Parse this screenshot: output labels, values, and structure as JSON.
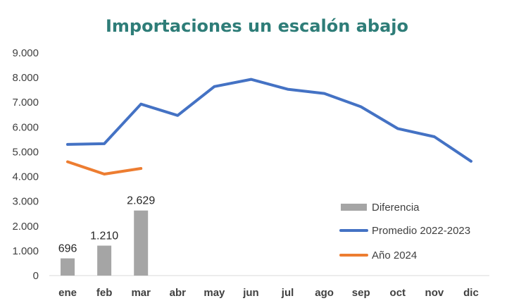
{
  "chart_data": {
    "type": "bar",
    "title": "Importaciones un escalón abajo",
    "categories": [
      "ene",
      "feb",
      "mar",
      "abr",
      "may",
      "jun",
      "jul",
      "ago",
      "sep",
      "oct",
      "nov",
      "dic"
    ],
    "ylim": [
      0,
      9000
    ],
    "yticks": [
      0,
      1000,
      2000,
      3000,
      4000,
      5000,
      6000,
      7000,
      8000,
      9000
    ],
    "ytick_labels": [
      "0",
      "1.000",
      "2.000",
      "3.000",
      "4.000",
      "5.000",
      "6.000",
      "7.000",
      "8.000",
      "9.000"
    ],
    "grid": false,
    "legend_position": "right",
    "series": [
      {
        "name": "Diferencia",
        "kind": "bar",
        "color": "#a5a5a5",
        "values": [
          696,
          1210,
          2629,
          null,
          null,
          null,
          null,
          null,
          null,
          null,
          null,
          null
        ],
        "labels": [
          "696",
          "1.210",
          "2.629"
        ]
      },
      {
        "name": "Promedio 2022-2023",
        "kind": "line",
        "color": "#4472c4",
        "values": [
          5300,
          5330,
          6930,
          6470,
          7640,
          7930,
          7530,
          7360,
          6820,
          5940,
          5610,
          4620
        ]
      },
      {
        "name": "Año 2024",
        "kind": "line",
        "color": "#ed7d31",
        "values": [
          4600,
          4100,
          4330,
          null,
          null,
          null,
          null,
          null,
          null,
          null,
          null,
          null
        ]
      }
    ]
  }
}
